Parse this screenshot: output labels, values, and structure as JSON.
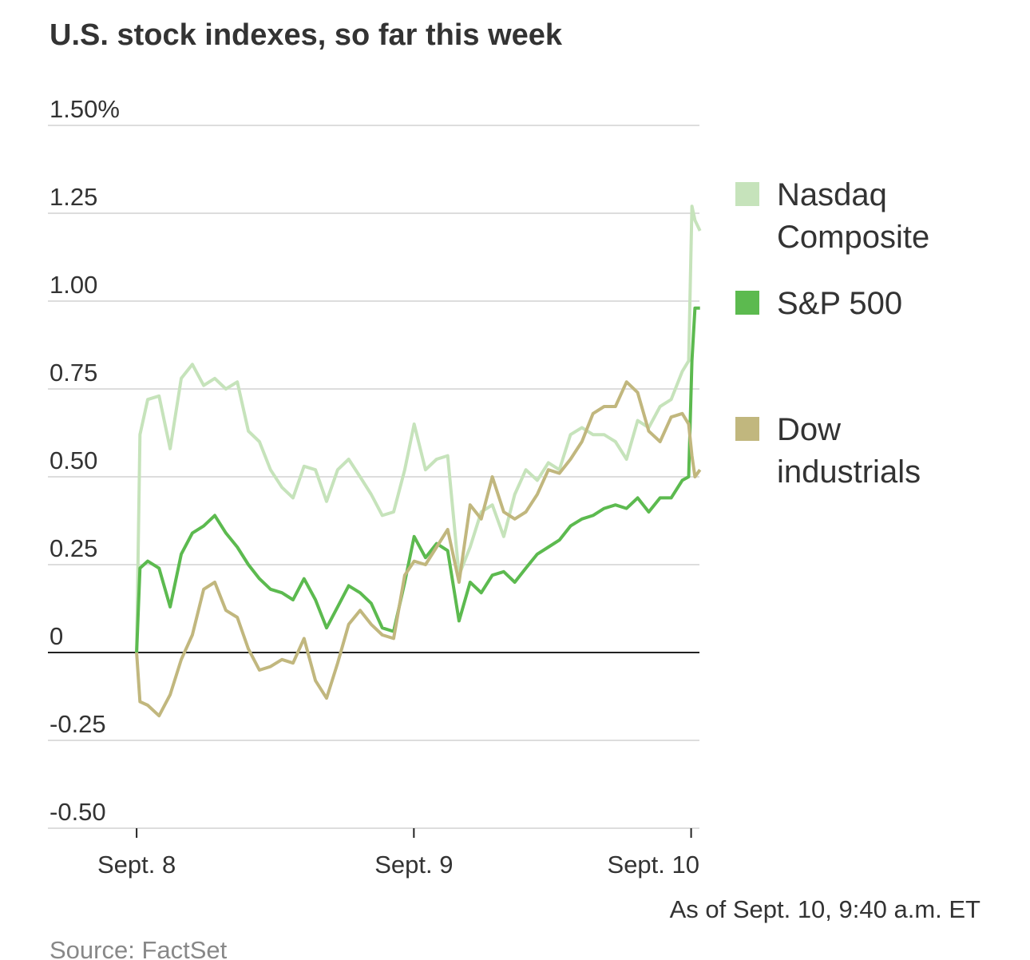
{
  "chart_data": {
    "type": "line",
    "title": "U.S. stock indexes, so far this week",
    "note": "As of Sept. 10, 9:40 a.m. ET",
    "source": "Source: FactSet",
    "x": [
      0,
      0.012,
      0.04,
      0.081,
      0.121,
      0.161,
      0.201,
      0.242,
      0.282,
      0.322,
      0.363,
      0.403,
      0.443,
      0.483,
      0.524,
      0.564,
      0.604,
      0.645,
      0.685,
      0.725,
      0.765,
      0.806,
      0.846,
      0.886,
      0.927,
      0.967,
      1.001,
      1.042,
      1.082,
      1.122,
      1.163,
      1.203,
      1.243,
      1.283,
      1.324,
      1.364,
      1.404,
      1.445,
      1.485,
      1.525,
      1.565,
      1.606,
      1.646,
      1.686,
      1.727,
      1.767,
      1.807,
      1.847,
      1.888,
      1.928,
      1.968,
      1.991,
      2.003,
      2.014,
      2.032
    ],
    "xlim": [
      -0.32,
      2.03
    ],
    "xticks": [
      {
        "value": 0,
        "label": "Sept. 8"
      },
      {
        "value": 1,
        "label": "Sept. 9"
      },
      {
        "value": 2,
        "label": "Sept. 10"
      }
    ],
    "ylim": [
      -0.5,
      1.5
    ],
    "yticks": [
      {
        "value": 1.5,
        "label": "1.50%"
      },
      1.25,
      {
        "value": 1,
        "label": "1.00"
      },
      0.75,
      {
        "value": 0.5,
        "label": "0.50"
      },
      0.25,
      0,
      -0.25,
      {
        "value": -0.5,
        "label": "-0.50"
      }
    ],
    "grid": true,
    "series": [
      {
        "name": "Nasdaq Composite",
        "color": "#c6e3bb",
        "values": [
          0,
          0.62,
          0.72,
          0.73,
          0.58,
          0.78,
          0.82,
          0.76,
          0.78,
          0.75,
          0.77,
          0.63,
          0.6,
          0.52,
          0.47,
          0.44,
          0.53,
          0.52,
          0.43,
          0.52,
          0.55,
          0.5,
          0.45,
          0.39,
          0.4,
          0.52,
          0.65,
          0.52,
          0.55,
          0.56,
          0.22,
          0.3,
          0.4,
          0.42,
          0.33,
          0.45,
          0.52,
          0.49,
          0.54,
          0.52,
          0.62,
          0.64,
          0.62,
          0.62,
          0.6,
          0.55,
          0.66,
          0.64,
          0.7,
          0.72,
          0.8,
          0.83,
          1.27,
          1.23,
          1.2
        ]
      },
      {
        "name": "S&P 500",
        "color": "#5cba4f",
        "values": [
          0,
          0.24,
          0.26,
          0.24,
          0.13,
          0.28,
          0.34,
          0.36,
          0.39,
          0.34,
          0.3,
          0.25,
          0.21,
          0.18,
          0.17,
          0.15,
          0.21,
          0.15,
          0.07,
          0.13,
          0.19,
          0.17,
          0.14,
          0.07,
          0.06,
          0.2,
          0.33,
          0.27,
          0.31,
          0.29,
          0.09,
          0.2,
          0.17,
          0.22,
          0.23,
          0.2,
          0.24,
          0.28,
          0.3,
          0.32,
          0.36,
          0.38,
          0.39,
          0.41,
          0.42,
          0.41,
          0.44,
          0.4,
          0.44,
          0.44,
          0.49,
          0.5,
          0.83,
          0.98,
          0.98
        ]
      },
      {
        "name": "Dow industrials",
        "color": "#c1b77e",
        "values": [
          0,
          -0.14,
          -0.15,
          -0.18,
          -0.12,
          -0.02,
          0.05,
          0.18,
          0.2,
          0.12,
          0.1,
          0.01,
          -0.05,
          -0.04,
          -0.02,
          -0.03,
          0.04,
          -0.08,
          -0.13,
          -0.03,
          0.08,
          0.12,
          0.08,
          0.05,
          0.04,
          0.22,
          0.26,
          0.25,
          0.3,
          0.35,
          0.2,
          0.42,
          0.38,
          0.5,
          0.4,
          0.38,
          0.4,
          0.45,
          0.52,
          0.51,
          0.55,
          0.6,
          0.68,
          0.7,
          0.7,
          0.77,
          0.74,
          0.63,
          0.6,
          0.67,
          0.68,
          0.65,
          0.56,
          0.5,
          0.52
        ]
      }
    ]
  }
}
